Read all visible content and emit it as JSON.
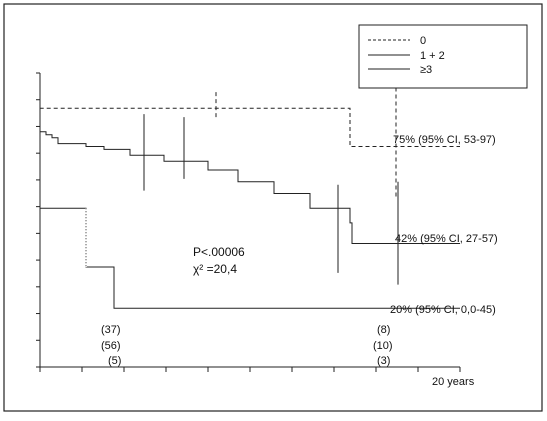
{
  "chart_data": {
    "type": "line",
    "title": "",
    "xlabel": "20 years",
    "ylabel": "",
    "xlim": [
      0,
      21
    ],
    "ylim": [
      0,
      100
    ],
    "legend": {
      "placement": "top-right",
      "entries": [
        "0",
        "1 + 2",
        "≥3"
      ]
    },
    "series": [
      {
        "name": "0",
        "style": "dashed",
        "steps": [
          [
            0,
            100
          ],
          [
            0,
            88
          ],
          [
            15.5,
            88
          ],
          [
            15.5,
            75
          ],
          [
            21,
            75
          ]
        ],
        "ci_bars": [
          [
            8.8,
            85,
            94
          ],
          [
            17.8,
            58,
            97
          ]
        ]
      },
      {
        "name": "1 + 2",
        "style": "solid",
        "steps": [
          [
            0,
            100
          ],
          [
            0,
            80
          ],
          [
            0.3,
            80
          ],
          [
            0.3,
            79
          ],
          [
            0.6,
            79
          ],
          [
            0.6,
            78
          ],
          [
            0.9,
            78
          ],
          [
            0.9,
            76
          ],
          [
            2.3,
            76
          ],
          [
            2.3,
            75
          ],
          [
            3.2,
            75
          ],
          [
            3.2,
            74
          ],
          [
            4.5,
            74
          ],
          [
            4.5,
            72
          ],
          [
            6.2,
            72
          ],
          [
            6.2,
            70
          ],
          [
            8.4,
            70
          ],
          [
            8.4,
            67
          ],
          [
            9.9,
            67
          ],
          [
            9.9,
            63
          ],
          [
            11.7,
            63
          ],
          [
            11.7,
            59
          ],
          [
            13.5,
            59
          ],
          [
            13.5,
            54
          ],
          [
            15.5,
            54
          ],
          [
            15.5,
            49
          ],
          [
            15.6,
            49
          ],
          [
            15.6,
            42
          ],
          [
            21,
            42
          ]
        ],
        "ci_bars": [
          [
            5.2,
            60,
            86
          ],
          [
            7.2,
            64,
            85
          ],
          [
            14.9,
            32,
            62
          ],
          [
            17.9,
            28,
            63
          ]
        ]
      },
      {
        "name": "≥3",
        "style": "solid",
        "steps": [
          [
            0,
            100
          ],
          [
            0,
            54
          ],
          [
            2.3,
            54
          ],
          [
            2.3,
            34
          ],
          [
            3.7,
            34
          ],
          [
            3.7,
            20
          ],
          [
            21,
            20
          ]
        ],
        "dotted_segments": [
          [
            2.3,
            54,
            2.3,
            34
          ]
        ]
      }
    ],
    "annotations": {
      "end_labels": [
        {
          "text": "75% (95% CI, 53-97)",
          "x": 16.2,
          "y": 75
        },
        {
          "text": "42% (95% CI, 27-57)",
          "x": 16.2,
          "y": 42
        },
        {
          "text": "20% (95% CI, 0,0-45)",
          "x": 15.7,
          "y": 20
        }
      ],
      "p_value": "P<.00006",
      "chi2": "χ² =20,4",
      "at_risk": [
        {
          "start": "(37)",
          "end": "(8)"
        },
        {
          "start": "(56)",
          "end": "(10)"
        },
        {
          "start": "(5)",
          "end": "(3)"
        }
      ]
    },
    "ticks": {
      "x_count": 11,
      "y_count": 12
    }
  }
}
